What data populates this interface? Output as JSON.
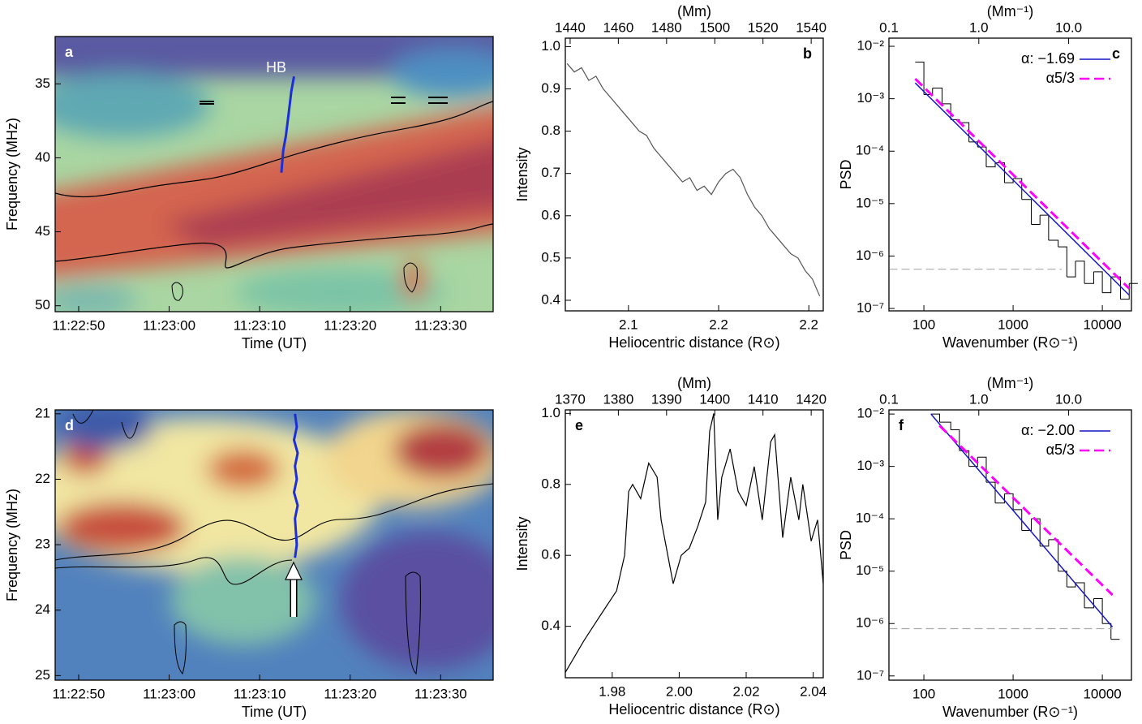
{
  "chart_data": [
    {
      "type": "spectrogram",
      "label": "a",
      "label_color": "#ffffff",
      "annotation": "HB",
      "xlabel": "Time (UT)",
      "ylabel": "Frequency (MHz)",
      "xlim": [
        "11:22:47.4",
        "11:23:35.8"
      ],
      "xticks": [
        "11:22:50",
        "11:23:00",
        "11:23:10",
        "11:23:20",
        "11:23:30"
      ],
      "ylim": [
        50.4,
        31.8
      ],
      "yticks": [
        35,
        40,
        45,
        50
      ],
      "trace": {
        "color": "#1a2fd8",
        "x": [
          "11:23:12.4",
          "11:23:12.6",
          "11:23:12.9",
          "11:23:13.2",
          "11:23:13.5",
          "11:23:13.8"
        ],
        "values": [
          41,
          39.5,
          38.5,
          37,
          35.5,
          34.5
        ]
      }
    },
    {
      "type": "line",
      "label": "b",
      "xlabel": "Heliocentric distance (R⊙)",
      "ylabel": "Intensity",
      "x2label": "(Mm)",
      "xlim": [
        2.065,
        2.208
      ],
      "xticks": [
        2.1,
        {
          "value": 2.15,
          "label": "2.2"
        },
        2.2
      ],
      "x2lim": [
        1438,
        1545
      ],
      "x2ticks": [
        1440,
        1460,
        1480,
        1500,
        1520,
        1540
      ],
      "ylim": [
        0.375,
        1.02
      ],
      "yticks": [
        0.4,
        0.5,
        0.6,
        0.7,
        0.8,
        0.9,
        {
          "value": 1,
          "label": "1.0"
        }
      ],
      "color": "#555555",
      "x": [
        2.066,
        2.07,
        2.074,
        2.078,
        2.082,
        2.086,
        2.09,
        2.094,
        2.098,
        2.102,
        2.106,
        2.11,
        2.114,
        2.118,
        2.122,
        2.126,
        2.13,
        2.134,
        2.138,
        2.142,
        2.146,
        2.15,
        2.154,
        2.158,
        2.162,
        2.166,
        2.17,
        2.174,
        2.178,
        2.182,
        2.186,
        2.19,
        2.194,
        2.198,
        2.202,
        2.206
      ],
      "values": [
        0.96,
        0.94,
        0.95,
        0.92,
        0.93,
        0.9,
        0.88,
        0.86,
        0.84,
        0.82,
        0.8,
        0.79,
        0.76,
        0.74,
        0.72,
        0.7,
        0.68,
        0.69,
        0.66,
        0.67,
        0.65,
        0.68,
        0.7,
        0.71,
        0.69,
        0.65,
        0.62,
        0.6,
        0.57,
        0.55,
        0.53,
        0.51,
        0.5,
        0.47,
        0.45,
        0.41
      ]
    },
    {
      "type": "psd",
      "log": true,
      "label": "c",
      "xlabel": "Wavenumber (R⊙⁻¹)",
      "ylabel": "PSD",
      "x2label": "(Mm⁻¹)",
      "xlim": [
        40.6,
        21200
      ],
      "xticks": [
        100,
        1000,
        10000
      ],
      "x2lim": [
        0.1,
        50
      ],
      "x2ticks": [
        0.1,
        {
          "value": 1,
          "label": "1.0"
        },
        {
          "value": 10,
          "label": "10.0"
        }
      ],
      "ylim": [
        9e-08,
        0.0143
      ],
      "yticks": [
        {
          "value": 1e-07,
          "label": "10⁻⁷"
        },
        {
          "value": 1e-06,
          "label": "10⁻⁶"
        },
        {
          "value": 1e-05,
          "label": "10⁻⁵"
        },
        {
          "value": 0.0001,
          "label": "10⁻⁴"
        },
        {
          "value": 0.001,
          "label": "10⁻³"
        },
        {
          "value": 0.01,
          "label": "10⁻²"
        }
      ],
      "legend": "top-right",
      "step": {
        "color": "#000000",
        "x": [
          80,
          100,
          125,
          160,
          200,
          250,
          320,
          400,
          500,
          630,
          800,
          1000,
          1250,
          1600,
          2000,
          2500,
          3200,
          4000,
          5000,
          6300,
          8000,
          10000,
          12500,
          16000,
          20000
        ],
        "values": [
          0.005,
          0.0012,
          0.0016,
          0.0008,
          0.0004,
          0.00035,
          0.00015,
          0.00012,
          5e-05,
          6e-05,
          2.5e-05,
          3e-05,
          1.2e-05,
          4e-06,
          6e-06,
          2e-06,
          1.5e-06,
          4e-07,
          8e-07,
          3e-07,
          5e-07,
          2e-07,
          4e-07,
          1.5e-07,
          3e-07
        ]
      },
      "noise": {
        "color": "#aaaaaa",
        "x": [
          41,
          3500
        ],
        "values": [
          5.6e-07,
          5.6e-07
        ]
      },
      "series": [
        {
          "name": "α: −1.69",
          "color": "#1515c8",
          "dashed": false,
          "x": [
            80,
            20000
          ],
          "values": [
            0.002,
            1.8e-07
          ]
        },
        {
          "name": "α5/3",
          "color": "#ff00ff",
          "dashed": true,
          "x": [
            80,
            20000
          ],
          "values": [
            0.0024,
            2.4e-07
          ]
        }
      ]
    },
    {
      "type": "spectrogram",
      "label": "d",
      "label_color": "#ffffff",
      "xlabel": "Time (UT)",
      "ylabel": "Frequency (MHz)",
      "xlim": [
        "11:22:47.4",
        "11:23:35.8"
      ],
      "xticks": [
        "11:22:50",
        "11:23:00",
        "11:23:10",
        "11:23:20",
        "11:23:30"
      ],
      "ylim": [
        25.07,
        20.94
      ],
      "yticks": [
        21,
        22,
        23,
        24,
        25
      ],
      "trace": {
        "color": "#1a2fd8",
        "x": [
          "11:23:13.9",
          "11:23:14.1",
          "11:23:13.8",
          "11:23:14.2",
          "11:23:13.9",
          "11:23:14.1",
          "11:23:13.8",
          "11:23:14.2",
          "11:23:13.9",
          "11:23:14.0",
          "11:23:14.1",
          "11:23:13.9"
        ],
        "values": [
          21.0,
          21.2,
          21.4,
          21.6,
          21.8,
          22.0,
          22.2,
          22.4,
          22.6,
          22.8,
          23.0,
          23.2
        ]
      }
    },
    {
      "type": "line",
      "label": "e",
      "xlabel": "Heliocentric distance (R⊙)",
      "ylabel": "Intensity",
      "x2label": "(Mm)",
      "xlim": [
        1.966,
        2.043
      ],
      "xticks": [
        1.98,
        {
          "value": 2,
          "label": "2.00"
        },
        2.02,
        2.04
      ],
      "x2lim": [
        1369,
        1422.5
      ],
      "x2ticks": [
        1370,
        1380,
        1390,
        1400,
        1410,
        1420
      ],
      "ylim": [
        0.255,
        1.01
      ],
      "yticks": [
        0.4,
        0.6,
        0.8,
        {
          "value": 1,
          "label": "1.0"
        }
      ],
      "color": "#000000",
      "x": [
        1.966,
        1.9716,
        1.9764,
        1.9813,
        1.9837,
        1.9849,
        1.9861,
        1.9885,
        1.9909,
        1.9934,
        1.9946,
        1.997,
        1.9982,
        2.0006,
        2.003,
        2.0055,
        2.0079,
        2.0091,
        2.0103,
        2.0115,
        2.0127,
        2.0152,
        2.0176,
        2.02,
        2.0224,
        2.0248,
        2.0273,
        2.0285,
        2.0309,
        2.0333,
        2.0357,
        2.0369,
        2.0394,
        2.0413,
        2.043
      ],
      "values": [
        0.27,
        0.36,
        0.43,
        0.5,
        0.6,
        0.78,
        0.8,
        0.76,
        0.86,
        0.82,
        0.7,
        0.58,
        0.52,
        0.6,
        0.62,
        0.68,
        0.75,
        0.95,
        1.0,
        0.7,
        0.82,
        0.9,
        0.78,
        0.74,
        0.85,
        0.7,
        0.92,
        0.94,
        0.65,
        0.82,
        0.7,
        0.8,
        0.64,
        0.7,
        0.52
      ]
    },
    {
      "type": "psd",
      "log": true,
      "label": "f",
      "xlabel": "Wavenumber (R⊙⁻¹)",
      "ylabel": "PSD",
      "x2label": "(Mm⁻¹)",
      "xlim": [
        40.6,
        21200
      ],
      "xticks": [
        100,
        1000,
        10000
      ],
      "x2lim": [
        0.1,
        50
      ],
      "x2ticks": [
        0.1,
        {
          "value": 1,
          "label": "1.0"
        },
        {
          "value": 10,
          "label": "10.0"
        }
      ],
      "ylim": [
        8.3e-08,
        0.012
      ],
      "yticks": [
        {
          "value": 1e-07,
          "label": "10⁻⁷"
        },
        {
          "value": 1e-06,
          "label": "10⁻⁶"
        },
        {
          "value": 1e-05,
          "label": "10⁻⁵"
        },
        {
          "value": 0.0001,
          "label": "10⁻⁴"
        },
        {
          "value": 0.001,
          "label": "10⁻³"
        },
        {
          "value": 0.01,
          "label": "10⁻²"
        }
      ],
      "legend": "top-right",
      "step": {
        "color": "#000000",
        "x": [
          120,
          150,
          200,
          250,
          320,
          400,
          500,
          630,
          800,
          1000,
          1250,
          1600,
          2000,
          2500,
          3200,
          4000,
          5000,
          6300,
          8000,
          10000,
          12500
        ],
        "values": [
          0.01,
          0.007,
          0.005,
          0.002,
          0.001,
          0.0015,
          0.0005,
          0.0002,
          0.0003,
          0.00015,
          6e-05,
          0.0001,
          3e-05,
          4e-05,
          1e-05,
          5e-06,
          6e-06,
          2e-06,
          3e-06,
          1e-06,
          5e-07
        ]
      },
      "noise": {
        "color": "#aaaaaa",
        "x": [
          41,
          13000
        ],
        "values": [
          8e-07,
          8e-07
        ]
      },
      "series": [
        {
          "name": "α: −2.00",
          "color": "#1515c8",
          "dashed": false,
          "x": [
            120,
            13000
          ],
          "values": [
            0.01,
            8.6e-07
          ]
        },
        {
          "name": "α5/3",
          "color": "#ff00ff",
          "dashed": true,
          "x": [
            150,
            13000
          ],
          "values": [
            0.006,
            3.5e-06
          ]
        }
      ]
    }
  ]
}
